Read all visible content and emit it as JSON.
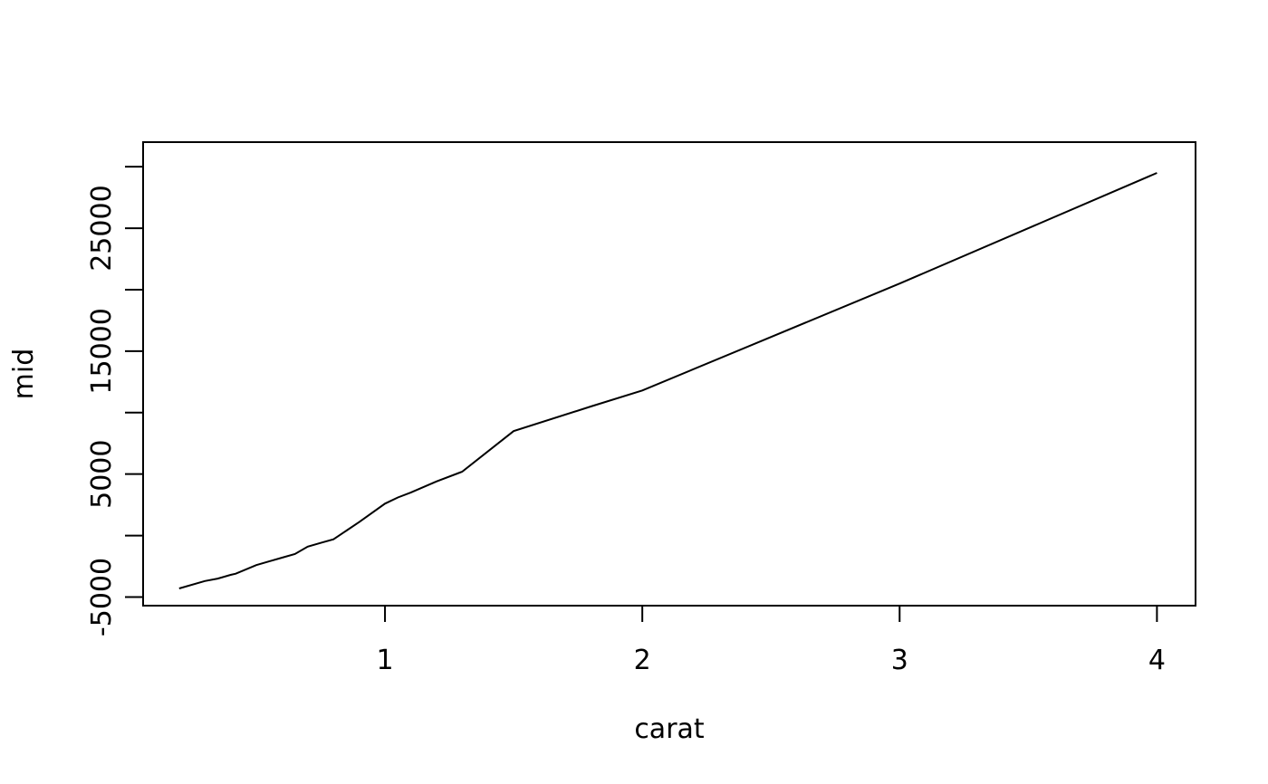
{
  "chart_data": {
    "type": "line",
    "title": "",
    "xlabel": "carat",
    "ylabel": "mid",
    "xlim": [
      0.06,
      4.15
    ],
    "ylim": [
      -5700,
      32000
    ],
    "x_ticks": [
      1,
      2,
      3,
      4
    ],
    "x_tick_labels": [
      "1",
      "2",
      "3",
      "4"
    ],
    "y_ticks": [
      -5000,
      0,
      5000,
      10000,
      15000,
      20000,
      25000,
      30000
    ],
    "y_tick_labels": [
      "-5000",
      "",
      "5000",
      "",
      "15000",
      "",
      "25000",
      ""
    ],
    "grid": false,
    "legend": "none",
    "line_color": "#000000",
    "series": [
      {
        "x": [
          0.2,
          0.3,
          0.35,
          0.4,
          0.42,
          0.5,
          0.55,
          0.6,
          0.65,
          0.7,
          0.75,
          0.8,
          0.9,
          1.0,
          1.05,
          1.1,
          1.2,
          1.3,
          1.5,
          1.8,
          2.0,
          3.0,
          4.0
        ],
        "values": [
          -4300,
          -3700,
          -3500,
          -3200,
          -3100,
          -2400,
          -2100,
          -1800,
          -1500,
          -900,
          -600,
          -300,
          1100,
          2600,
          3100,
          3500,
          4400,
          5200,
          8500,
          10500,
          11800,
          20500,
          29500
        ]
      }
    ]
  }
}
